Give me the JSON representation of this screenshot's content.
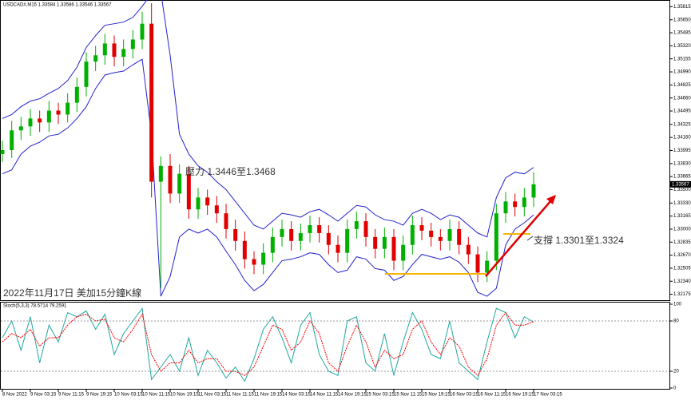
{
  "chart_data": [
    {
      "type": "candlestick",
      "title": "USDCAD#,M15  1.33584 1.33586 1.33546 1.33567",
      "annotations": [
        "壓力 1.3446至1.3468",
        "支撐 1.3301至1.3324",
        "2022年11月17日 美加15分鐘K線"
      ],
      "categories": [
        "8 Nov 2022",
        null,
        null,
        "9 Nov 03:15",
        null,
        null,
        "9 Nov 11:15",
        null,
        null,
        "9 Nov 19:15",
        null,
        null,
        "10 Nov 03:15",
        null,
        null,
        "10 Nov 11:15",
        null,
        null,
        "10 Nov 19:15",
        null,
        null,
        "11 Nov 03:15",
        null,
        null,
        "11 Nov 11:15",
        null,
        null,
        "11 Nov 19:15",
        null,
        null,
        "14 Nov 03:15",
        null,
        null,
        "14 Nov 11:15",
        null,
        null,
        "14 Nov 19:15",
        null,
        null,
        "15 Nov 03:15",
        null,
        null,
        "15 Nov 11:15",
        null,
        null,
        "15 Nov 19:15",
        null,
        null,
        "16 Nov 03:15",
        null,
        null,
        "16 Nov 11:15",
        null,
        null,
        "16 Nov 19:15",
        null,
        null,
        "17 Nov 03:15"
      ],
      "open": [
        1.3395,
        1.34,
        1.3425,
        1.343,
        1.344,
        1.3435,
        1.345,
        1.3445,
        1.346,
        1.348,
        1.3512,
        1.352,
        1.3535,
        1.3518,
        1.3528,
        1.354,
        1.356,
        1.336,
        1.338,
        1.3345,
        1.337,
        1.3325,
        1.334,
        1.333,
        1.332,
        1.33,
        1.3285,
        1.3262,
        1.3255,
        1.327,
        1.329,
        1.33,
        1.3285,
        1.3295,
        1.3305,
        1.3295,
        1.328,
        1.327,
        1.33,
        1.331,
        1.329,
        1.3275,
        1.329,
        1.326,
        1.328,
        1.3305,
        1.3298,
        1.329,
        1.3285,
        1.33,
        1.328,
        1.3268,
        1.3245,
        1.326,
        1.332,
        1.3335,
        1.3328,
        1.334
      ],
      "high": [
        1.3412,
        1.3437,
        1.3442,
        1.3452,
        1.345,
        1.3462,
        1.346,
        1.3472,
        1.3492,
        1.3524,
        1.3532,
        1.3547,
        1.3545,
        1.354,
        1.3552,
        1.3575,
        1.3586,
        1.3392,
        1.3395,
        1.3382,
        1.338,
        1.3352,
        1.335,
        1.3342,
        1.3332,
        1.3312,
        1.3297,
        1.3272,
        1.3282,
        1.3302,
        1.3312,
        1.331,
        1.3307,
        1.3317,
        1.3315,
        1.3305,
        1.3292,
        1.3312,
        1.3322,
        1.332,
        1.33,
        1.3302,
        1.33,
        1.3292,
        1.3317,
        1.3315,
        1.3308,
        1.33,
        1.3312,
        1.331,
        1.329,
        1.3278,
        1.3272,
        1.3332,
        1.3347,
        1.3345,
        1.3352,
        1.3372
      ],
      "low": [
        1.3385,
        1.339,
        1.3413,
        1.3418,
        1.3423,
        1.3423,
        1.3433,
        1.3435,
        1.3448,
        1.3468,
        1.35,
        1.3508,
        1.3506,
        1.3506,
        1.3516,
        1.3528,
        1.334,
        1.3225,
        1.3333,
        1.3333,
        1.3313,
        1.3313,
        1.3318,
        1.3308,
        1.3288,
        1.3273,
        1.325,
        1.3243,
        1.3243,
        1.3258,
        1.3278,
        1.3273,
        1.3273,
        1.3283,
        1.3283,
        1.3268,
        1.3258,
        1.3258,
        1.3288,
        1.3278,
        1.3263,
        1.3263,
        1.3248,
        1.3248,
        1.3268,
        1.3286,
        1.3278,
        1.3273,
        1.3273,
        1.3268,
        1.3256,
        1.3233,
        1.3233,
        1.3248,
        1.3308,
        1.3316,
        1.3316,
        1.3328
      ],
      "close": [
        1.34,
        1.3425,
        1.343,
        1.344,
        1.3435,
        1.345,
        1.3445,
        1.346,
        1.348,
        1.3512,
        1.352,
        1.3535,
        1.3518,
        1.3528,
        1.354,
        1.356,
        1.336,
        1.338,
        1.3345,
        1.337,
        1.3325,
        1.334,
        1.333,
        1.332,
        1.33,
        1.3285,
        1.3262,
        1.3255,
        1.327,
        1.329,
        1.33,
        1.3285,
        1.3295,
        1.3305,
        1.3295,
        1.328,
        1.327,
        1.33,
        1.331,
        1.329,
        1.3275,
        1.329,
        1.326,
        1.328,
        1.3305,
        1.3298,
        1.329,
        1.3285,
        1.33,
        1.328,
        1.3268,
        1.3245,
        1.326,
        1.332,
        1.3335,
        1.3328,
        1.334,
        1.33567
      ],
      "upper_band": [
        1.344,
        1.3445,
        1.3455,
        1.3462,
        1.3465,
        1.3472,
        1.3478,
        1.3488,
        1.3505,
        1.353,
        1.3545,
        1.3558,
        1.356,
        1.3562,
        1.3568,
        1.3582,
        1.3598,
        1.36,
        1.352,
        1.342,
        1.3395,
        1.338,
        1.3372,
        1.336,
        1.335,
        1.3335,
        1.332,
        1.3305,
        1.33,
        1.331,
        1.332,
        1.3318,
        1.3315,
        1.3322,
        1.3325,
        1.3318,
        1.331,
        1.332,
        1.333,
        1.3328,
        1.3318,
        1.3312,
        1.331,
        1.3305,
        1.332,
        1.3325,
        1.332,
        1.3312,
        1.3318,
        1.3315,
        1.3305,
        1.3295,
        1.329,
        1.334,
        1.3365,
        1.3372,
        1.337,
        1.3378
      ],
      "lower_band": [
        1.337,
        1.3375,
        1.3395,
        1.3405,
        1.341,
        1.3418,
        1.342,
        1.3428,
        1.344,
        1.3455,
        1.3478,
        1.3495,
        1.3498,
        1.35,
        1.3508,
        1.3515,
        1.342,
        1.3215,
        1.324,
        1.329,
        1.33,
        1.3295,
        1.33,
        1.329,
        1.3272,
        1.3255,
        1.3235,
        1.3222,
        1.323,
        1.3245,
        1.326,
        1.3262,
        1.3265,
        1.327,
        1.3268,
        1.3255,
        1.3245,
        1.3248,
        1.3265,
        1.3262,
        1.325,
        1.3248,
        1.3235,
        1.324,
        1.3255,
        1.3268,
        1.3265,
        1.3262,
        1.3265,
        1.3258,
        1.3245,
        1.322,
        1.3215,
        1.3225,
        1.328,
        1.33,
        1.3308,
        1.3318
      ],
      "up_color": "#00b000",
      "down_color": "#e00000",
      "band_color": "#2222cc",
      "ylim": [
        1.321,
        1.359
      ],
      "yticks": [
        {
          "value": 1.35815,
          "label": "1.35815"
        },
        {
          "value": 1.3565,
          "label": "1.35650"
        },
        {
          "value": 1.35485,
          "label": "1.35485"
        },
        {
          "value": 1.3532,
          "label": "1.35320"
        },
        {
          "value": 1.35155,
          "label": "1.35155"
        },
        {
          "value": 1.3499,
          "label": "1.34990"
        },
        {
          "value": 1.34825,
          "label": "1.34825"
        },
        {
          "value": 1.3466,
          "label": "1.34660"
        },
        {
          "value": 1.34495,
          "label": "1.34495"
        },
        {
          "value": 1.34325,
          "label": "1.34325"
        },
        {
          "value": 1.3416,
          "label": "1.34160"
        },
        {
          "value": 1.33995,
          "label": "1.33995"
        },
        {
          "value": 1.3383,
          "label": "1.33830"
        },
        {
          "value": 1.33665,
          "label": "1.33665"
        },
        {
          "value": 1.335,
          "label": "1.33500"
        },
        {
          "value": 1.3333,
          "label": "1.33330"
        },
        {
          "value": 1.33165,
          "label": "1.33165"
        },
        {
          "value": 1.33,
          "label": "1.33000"
        },
        {
          "value": 1.32835,
          "label": "1.32835"
        },
        {
          "value": 1.3267,
          "label": "1.32670"
        },
        {
          "value": 1.32505,
          "label": "1.32505"
        },
        {
          "value": 1.3234,
          "label": "1.32340"
        },
        {
          "value": 1.32175,
          "label": "1.32175"
        }
      ]
    },
    {
      "type": "line",
      "title": "Stoch(5,3,3) 78.5714 79.2591",
      "series": [
        {
          "color": "#20a8a0",
          "values": [
            60,
            80,
            45,
            85,
            30,
            75,
            55,
            90,
            85,
            92,
            70,
            88,
            40,
            65,
            80,
            95,
            10,
            25,
            40,
            20,
            60,
            15,
            45,
            30,
            12,
            25,
            8,
            35,
            70,
            85,
            60,
            30,
            75,
            90,
            40,
            20,
            15,
            80,
            85,
            30,
            20,
            65,
            15,
            55,
            90,
            70,
            40,
            35,
            80,
            30,
            20,
            10,
            55,
            95,
            90,
            60,
            85,
            78.5714
          ]
        },
        {
          "color": "#ff0000",
          "values": [
            55,
            65,
            60,
            70,
            50,
            60,
            60,
            75,
            85,
            88,
            80,
            82,
            60,
            55,
            70,
            88,
            40,
            20,
            30,
            30,
            45,
            30,
            35,
            35,
            20,
            20,
            15,
            25,
            50,
            75,
            70,
            45,
            55,
            80,
            65,
            30,
            20,
            50,
            75,
            55,
            25,
            45,
            35,
            40,
            70,
            80,
            55,
            40,
            60,
            50,
            25,
            15,
            35,
            75,
            90,
            75,
            75,
            79.2591
          ]
        }
      ],
      "ylim": [
        0,
        100
      ],
      "yticks": [
        100,
        80,
        20,
        0
      ]
    }
  ]
}
